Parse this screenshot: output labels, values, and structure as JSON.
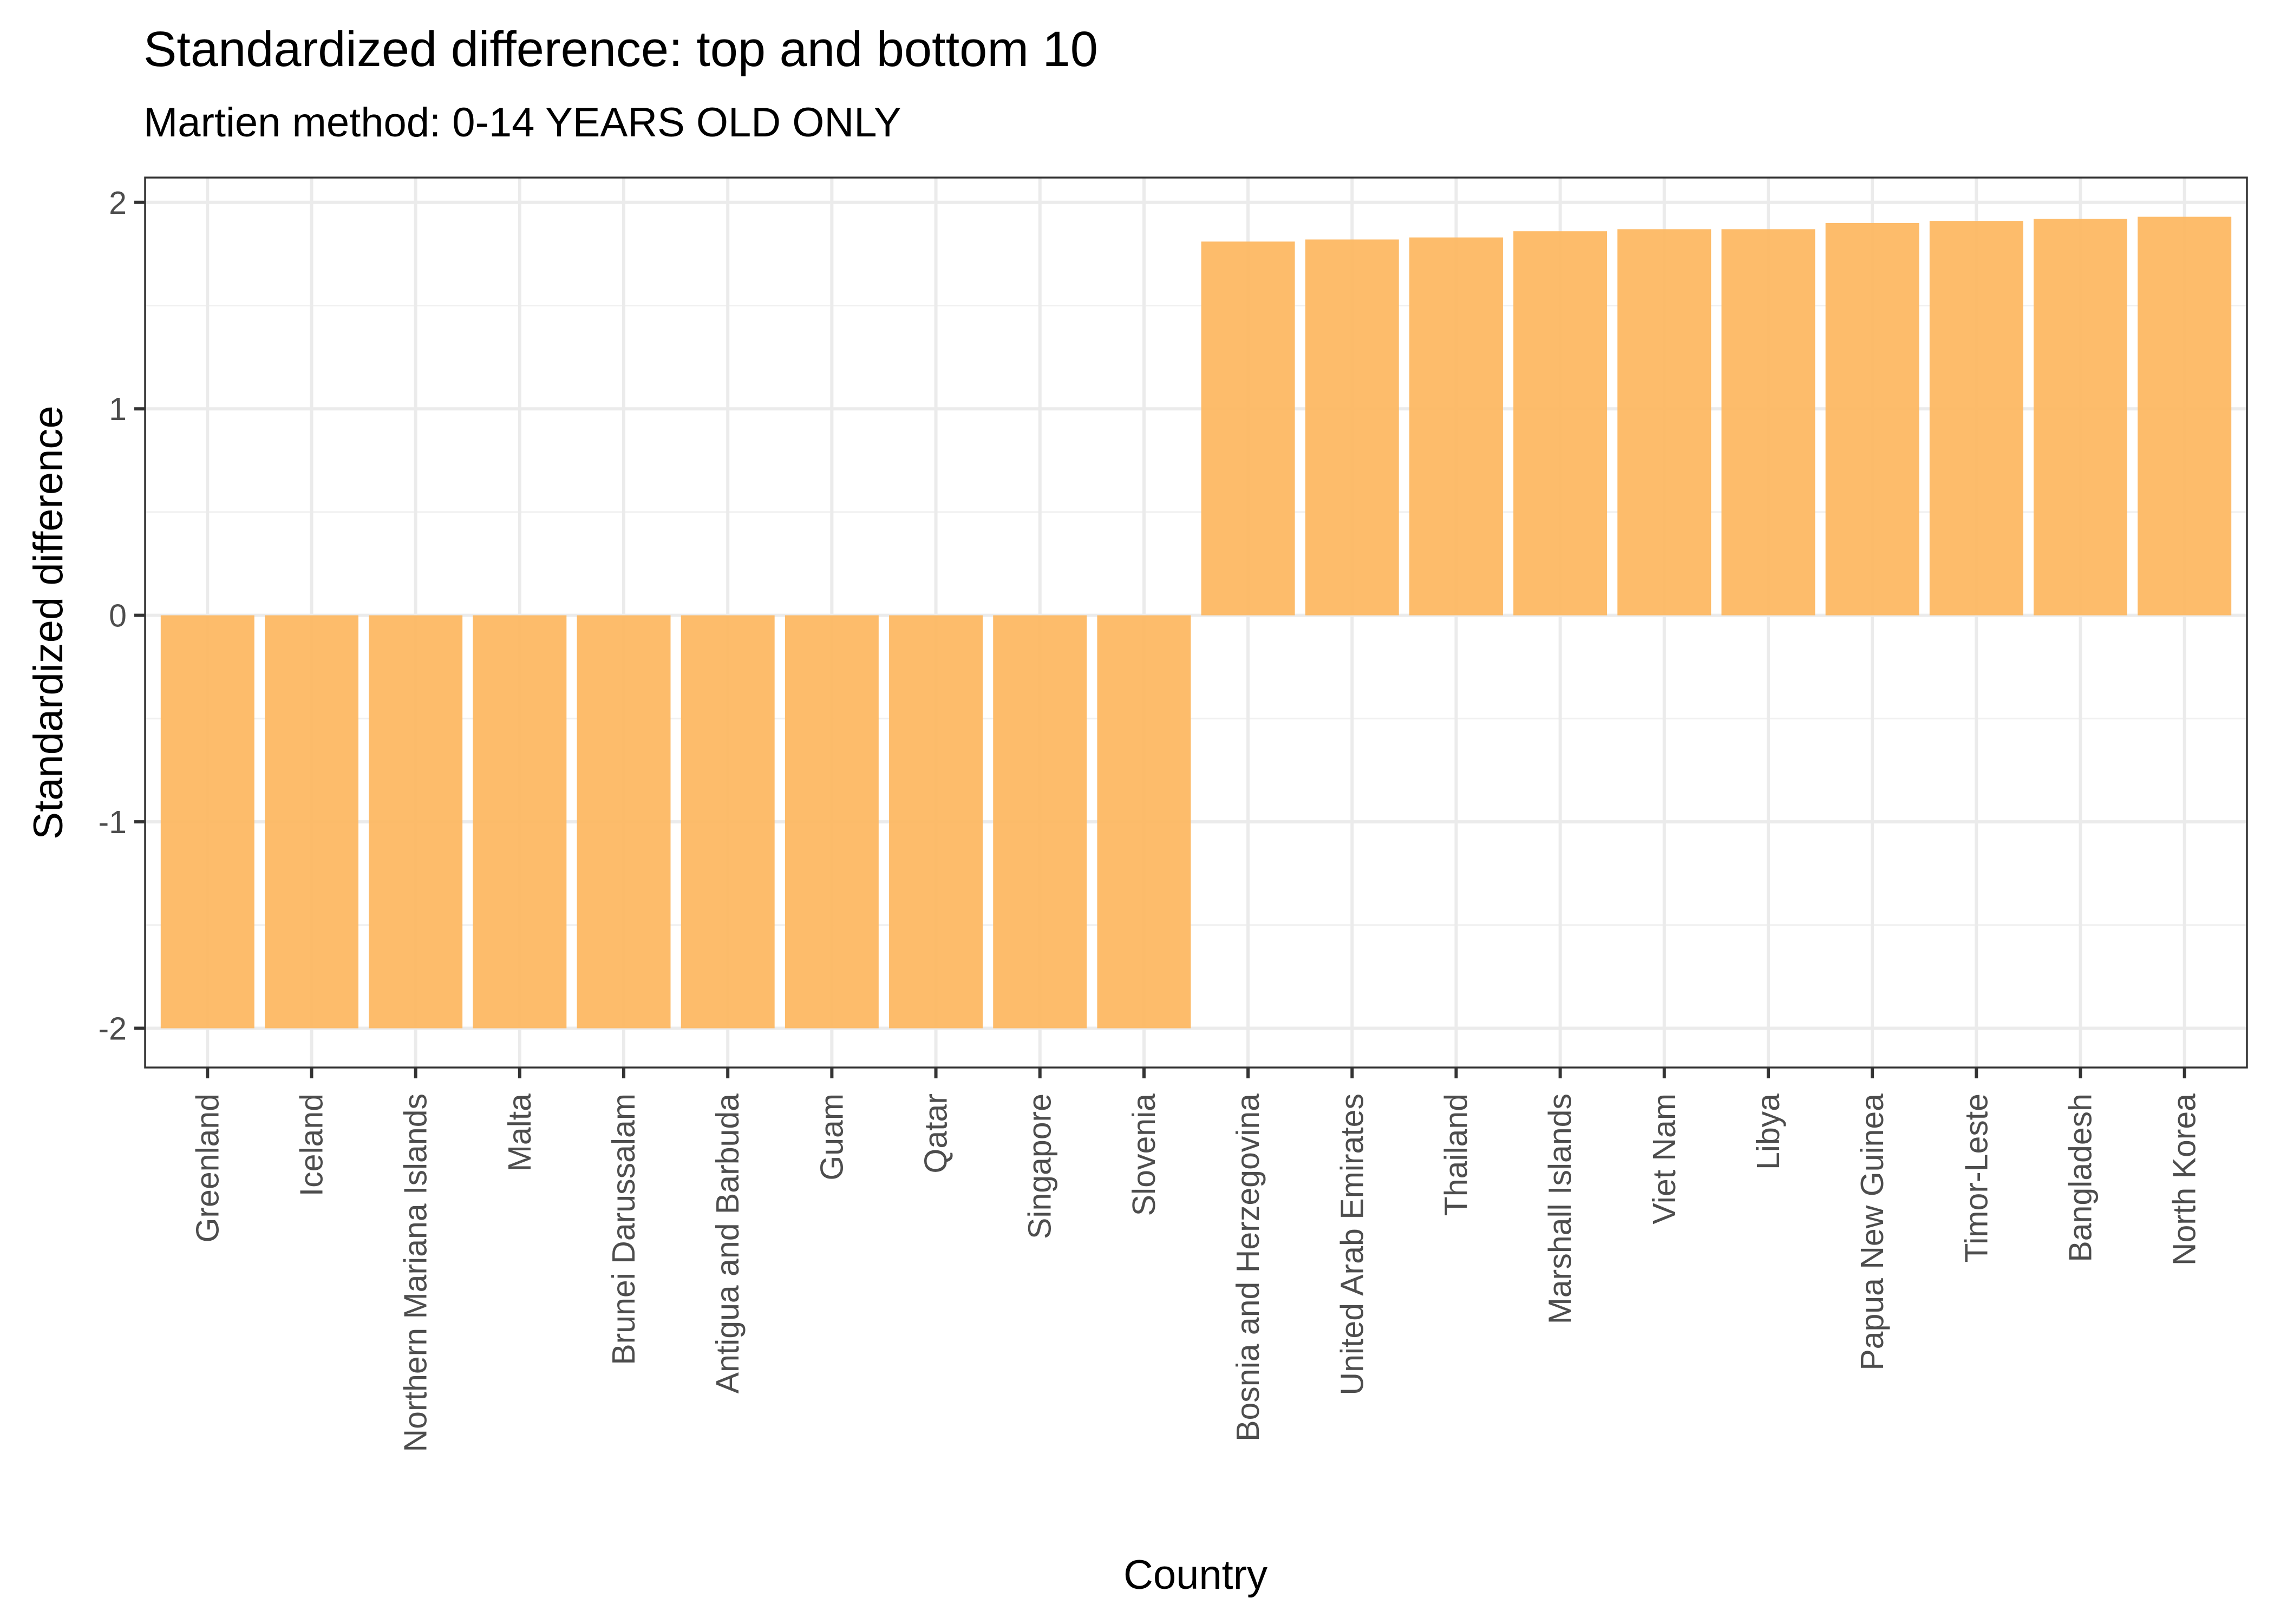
{
  "chart_data": {
    "type": "bar",
    "title": "Standardized difference: top and bottom 10",
    "subtitle": "Martien method: 0-14 YEARS OLD ONLY",
    "xlabel": "Country",
    "ylabel": "Standardized difference",
    "ylim": [
      -2.19,
      2.12
    ],
    "yticks": [
      -2,
      -1,
      0,
      1,
      2
    ],
    "ytick_labels": [
      "-2",
      "-1",
      "0",
      "1",
      "2"
    ],
    "grid": true,
    "bar_color": "#fdb863",
    "categories": [
      "Greenland",
      "Iceland",
      "Northern Mariana Islands",
      "Malta",
      "Brunei Darussalam",
      "Antigua and Barbuda",
      "Guam",
      "Qatar",
      "Singapore",
      "Slovenia",
      "Bosnia and Herzegovina",
      "United Arab Emirates",
      "Thailand",
      "Marshall Islands",
      "Viet Nam",
      "Libya",
      "Papua New Guinea",
      "Timor-Leste",
      "Bangladesh",
      "North Korea"
    ],
    "values": [
      -2,
      -2,
      -2,
      -2,
      -2,
      -2,
      -2,
      -2,
      -2,
      -2,
      1.81,
      1.82,
      1.83,
      1.86,
      1.87,
      1.87,
      1.9,
      1.91,
      1.92,
      1.93
    ]
  }
}
